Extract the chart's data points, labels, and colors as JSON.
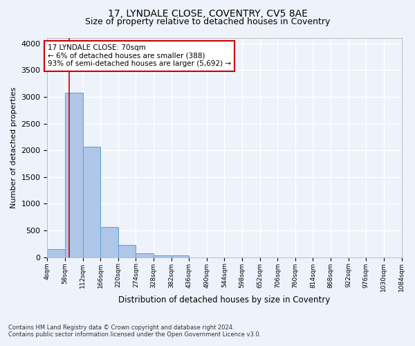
{
  "title1": "17, LYNDALE CLOSE, COVENTRY, CV5 8AE",
  "title2": "Size of property relative to detached houses in Coventry",
  "xlabel": "Distribution of detached houses by size in Coventry",
  "ylabel": "Number of detached properties",
  "bin_edges": [
    4,
    58,
    112,
    166,
    220,
    274,
    328,
    382,
    436,
    490,
    544,
    598,
    652,
    706,
    760,
    814,
    868,
    922,
    976,
    1030,
    1084
  ],
  "bar_heights": [
    150,
    3080,
    2070,
    560,
    230,
    70,
    40,
    40,
    0,
    0,
    0,
    0,
    0,
    0,
    0,
    0,
    0,
    0,
    0,
    0
  ],
  "bar_color": "#aec6e8",
  "bar_edgecolor": "#5a9fd4",
  "property_size": 70,
  "vline_color": "#cc0000",
  "ylim": [
    0,
    4100
  ],
  "yticks": [
    0,
    500,
    1000,
    1500,
    2000,
    2500,
    3000,
    3500,
    4000
  ],
  "annotation_text": "17 LYNDALE CLOSE: 70sqm\n← 6% of detached houses are smaller (388)\n93% of semi-detached houses are larger (5,692) →",
  "annotation_box_color": "#ffffff",
  "annotation_box_edgecolor": "#cc0000",
  "footnote1": "Contains HM Land Registry data © Crown copyright and database right 2024.",
  "footnote2": "Contains public sector information licensed under the Open Government Licence v3.0.",
  "background_color": "#eef2fa",
  "grid_color": "#ffffff",
  "title1_fontsize": 10,
  "title2_fontsize": 9,
  "tick_labels": [
    "4sqm",
    "58sqm",
    "112sqm",
    "166sqm",
    "220sqm",
    "274sqm",
    "328sqm",
    "382sqm",
    "436sqm",
    "490sqm",
    "544sqm",
    "598sqm",
    "652sqm",
    "706sqm",
    "760sqm",
    "814sqm",
    "868sqm",
    "922sqm",
    "976sqm",
    "1030sqm",
    "1084sqm"
  ]
}
